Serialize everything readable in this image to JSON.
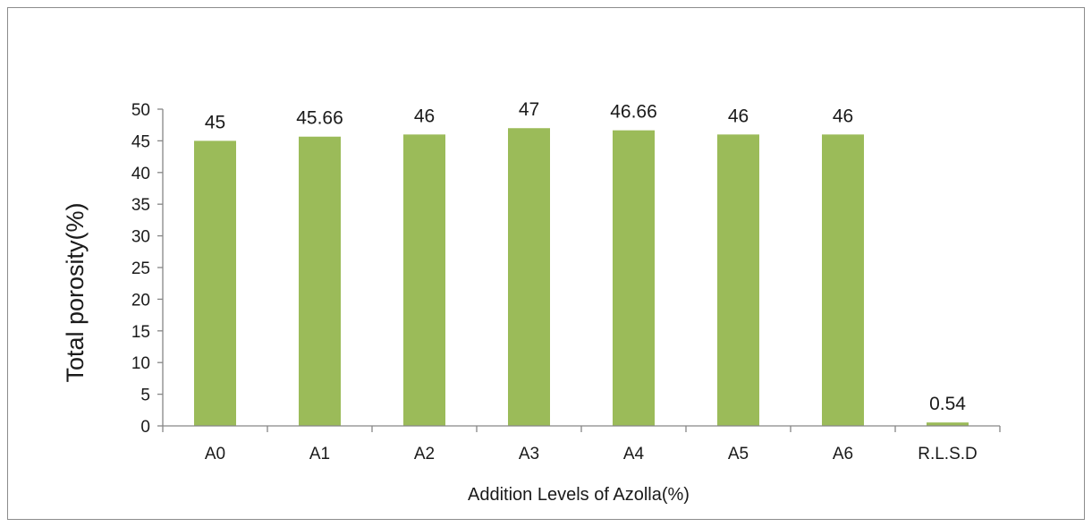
{
  "chart_data": {
    "type": "bar",
    "title": "",
    "xlabel": "Addition Levels of Azolla(%)",
    "ylabel": "Total porosity(%)",
    "ylim": [
      0,
      50
    ],
    "yticks": [
      0,
      5,
      10,
      15,
      20,
      25,
      30,
      35,
      40,
      45,
      50
    ],
    "grid": false,
    "legend": "none",
    "categories": [
      "A0",
      "A1",
      "A2",
      "A3",
      "A4",
      "A5",
      "A6",
      "R.L.S.D"
    ],
    "values": [
      45,
      45.66,
      46,
      47,
      46.66,
      46,
      46,
      0.54
    ],
    "data_labels": [
      "45",
      "45.66",
      "46",
      "47",
      "46.66",
      "46",
      "46",
      "0.54"
    ],
    "bar_color": "#9bbb59",
    "axis_color": "#868686"
  }
}
